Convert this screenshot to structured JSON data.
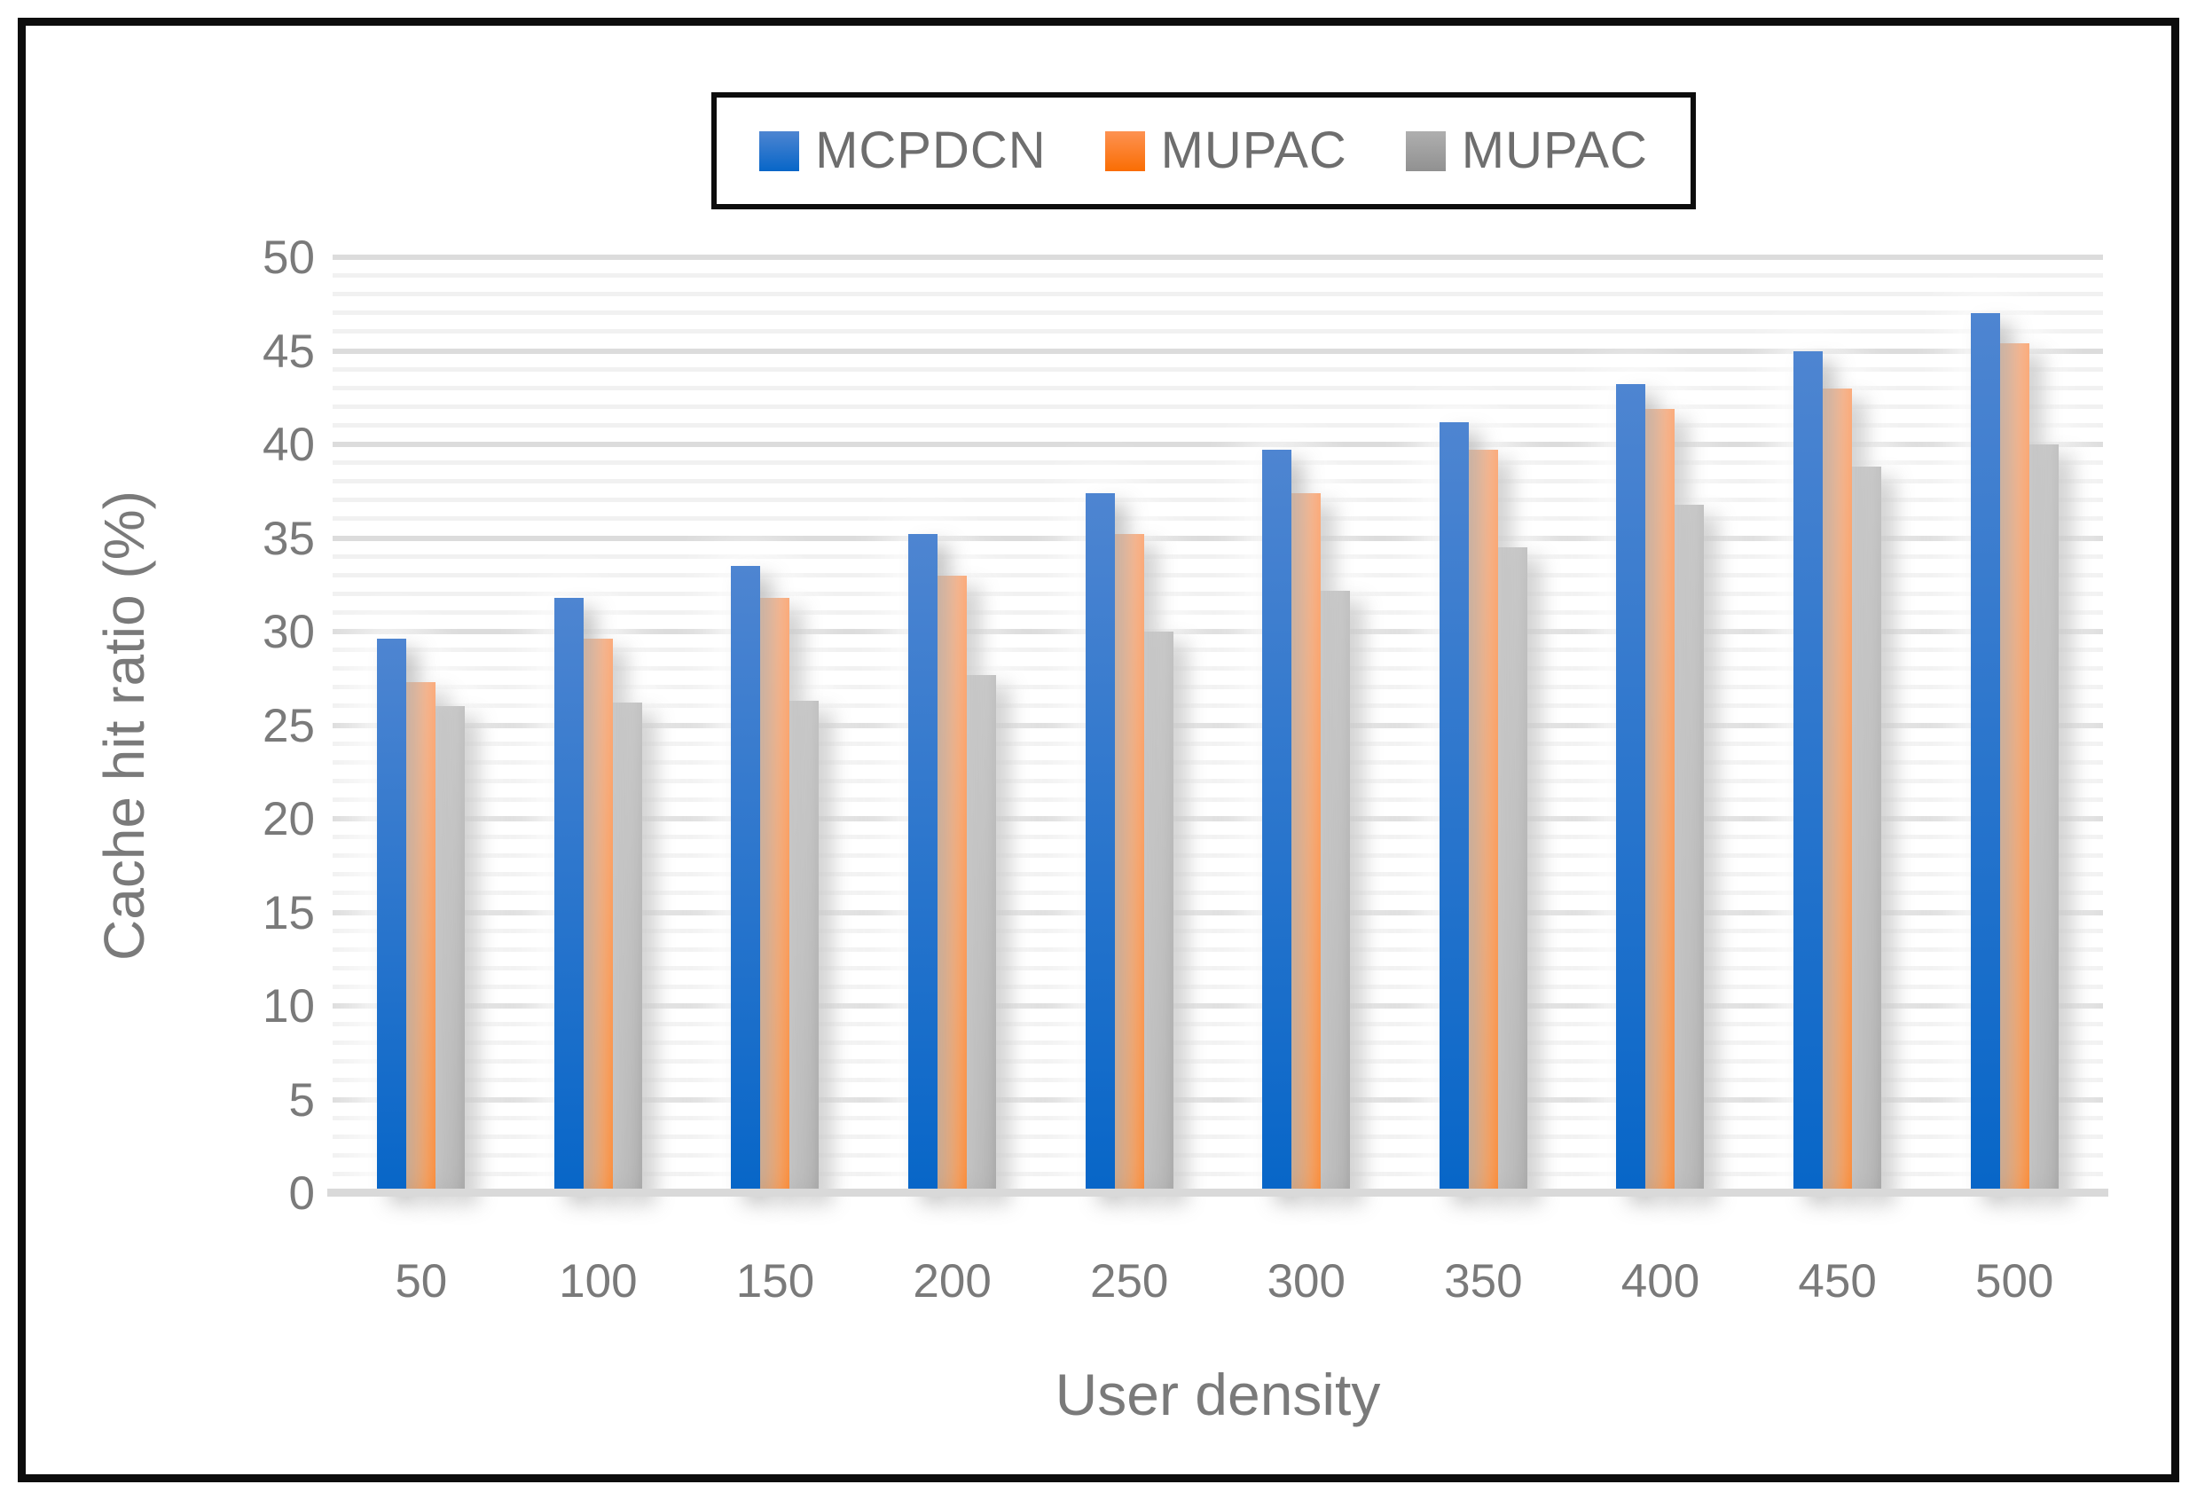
{
  "figure": {
    "background": "#ffffff",
    "border_color": "#0d0d0d"
  },
  "legend": {
    "position": "top-center",
    "items": [
      {
        "label": "MCPDCN",
        "series_key": "blue"
      },
      {
        "label": "MUPAC",
        "series_key": "orange"
      },
      {
        "label": "MUPAC",
        "series_key": "gray"
      }
    ]
  },
  "colors": {
    "blue": {
      "top": "#4e85d1",
      "bottom": "#0766c8"
    },
    "orange": {
      "top": "#fd9252",
      "bottom": "#fa6d03"
    },
    "gray": {
      "top": "#afafaf",
      "bottom": "#919191"
    },
    "axis_text": "#7a7a7a",
    "legend_text": "#6e6e6e",
    "minor_grid": "#f1f1f1",
    "major_grid": "#dcdcdc",
    "baseline": "#d9d9d9"
  },
  "axes": {
    "y_label": "Cache hit ratio (%)",
    "x_label": "User density",
    "y_tick_labels": [
      0,
      5,
      10,
      15,
      20,
      25,
      30,
      35,
      40,
      45,
      50
    ]
  },
  "chart_data": {
    "type": "bar",
    "title": "",
    "xlabel": "User density",
    "ylabel": "Cache hit ratio (%)",
    "ylim": [
      0,
      50
    ],
    "y_major_step": 5,
    "y_minor_step": 1,
    "grid": "horizontal minor+major",
    "legend_position": "top-center",
    "categories": [
      "50",
      "100",
      "150",
      "200",
      "250",
      "300",
      "350",
      "400",
      "450",
      "500"
    ],
    "series": [
      {
        "name": "MCPDCN",
        "color_key": "blue",
        "values": [
          29.6,
          31.8,
          33.5,
          35.2,
          37.4,
          39.7,
          41.2,
          43.2,
          45.0,
          47.0
        ]
      },
      {
        "name": "MUPAC",
        "color_key": "orange",
        "values": [
          27.3,
          29.6,
          31.8,
          33.0,
          35.2,
          37.4,
          39.7,
          41.9,
          43.0,
          45.4
        ]
      },
      {
        "name": "MUPAC",
        "color_key": "gray",
        "values": [
          26.0,
          26.2,
          26.3,
          27.7,
          30.0,
          32.2,
          34.5,
          36.8,
          38.8,
          40.0
        ]
      }
    ]
  }
}
